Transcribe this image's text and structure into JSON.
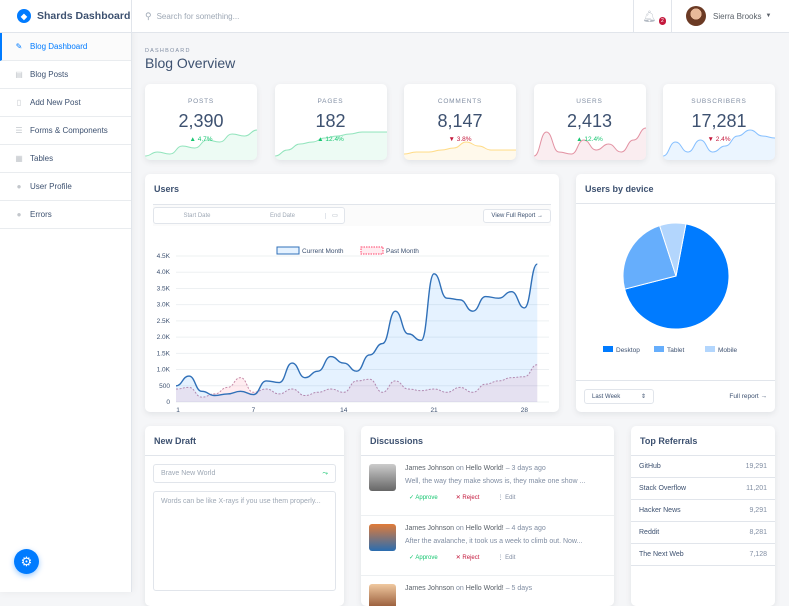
{
  "brand": {
    "name": "Shards Dashboard"
  },
  "sidebar": {
    "items": [
      {
        "label": "Blog Dashboard",
        "icon": "pencil-icon",
        "active": true
      },
      {
        "label": "Blog Posts",
        "icon": "posts-icon"
      },
      {
        "label": "Add New Post",
        "icon": "document-icon"
      },
      {
        "label": "Forms & Components",
        "icon": "forms-icon"
      },
      {
        "label": "Tables",
        "icon": "table-icon"
      },
      {
        "label": "User Profile",
        "icon": "user-icon"
      },
      {
        "label": "Errors",
        "icon": "error-icon"
      }
    ]
  },
  "header": {
    "search_placeholder": "Search for something...",
    "notification_count": "2",
    "user_name": "Sierra Brooks"
  },
  "page": {
    "subtitle": "DASHBOARD",
    "title": "Blog Overview"
  },
  "stats": [
    {
      "label": "POSTS",
      "value": "2,390",
      "change": "4.7%",
      "direction": "up",
      "color": "#17c671"
    },
    {
      "label": "PAGES",
      "value": "182",
      "change": "12.4%",
      "direction": "up",
      "color": "#17c671"
    },
    {
      "label": "COMMENTS",
      "value": "8,147",
      "change": "3.8%",
      "direction": "down",
      "color": "#ffb400"
    },
    {
      "label": "USERS",
      "value": "2,413",
      "change": "12.4%",
      "direction": "up",
      "color": "#c4183c"
    },
    {
      "label": "SUBSCRIBERS",
      "value": "17,281",
      "change": "2.4%",
      "direction": "down",
      "color": "#007bff"
    }
  ],
  "users_card": {
    "title": "Users",
    "start_placeholder": "Start Date",
    "end_placeholder": "End Date",
    "report_button": "View Full Report →"
  },
  "chart_data": [
    {
      "type": "line",
      "title": "",
      "ylim": [
        0,
        4500
      ],
      "yticks": [
        "0",
        "500",
        "1.0K",
        "1.5K",
        "2.0K",
        "2.5K",
        "3.0K",
        "3.5K",
        "4.0K",
        "4.5K"
      ],
      "xticks": [
        "1",
        "7",
        "14",
        "21",
        "28"
      ],
      "x": [
        1,
        2,
        3,
        4,
        5,
        6,
        7,
        8,
        9,
        10,
        11,
        12,
        13,
        14,
        15,
        16,
        17,
        18,
        19,
        20,
        21,
        22,
        23,
        24,
        25,
        26,
        27,
        28,
        29
      ],
      "series": [
        {
          "name": "Current Month",
          "color": "#007bff",
          "values": [
            500,
            800,
            330,
            200,
            250,
            330,
            230,
            650,
            600,
            1200,
            750,
            950,
            1400,
            1200,
            950,
            1450,
            1800,
            2800,
            2100,
            1900,
            3950,
            3200,
            3150,
            2800,
            3250,
            3200,
            3400,
            2900,
            4250
          ]
        },
        {
          "name": "Past Month",
          "color": "#ff4169",
          "values": [
            400,
            450,
            150,
            250,
            450,
            750,
            300,
            400,
            250,
            400,
            200,
            300,
            400,
            300,
            650,
            700,
            300,
            650,
            400,
            350,
            400,
            300,
            450,
            300,
            550,
            650,
            750,
            780,
            1150
          ]
        }
      ],
      "legend": "top"
    },
    {
      "type": "pie",
      "title": "Users by device",
      "categories": [
        "Desktop",
        "Tablet",
        "Mobile"
      ],
      "values": [
        68,
        24,
        8
      ],
      "colors": [
        "#007bff",
        "#66aefc",
        "#b3d6fd"
      ],
      "legend": "bottom"
    }
  ],
  "device_card": {
    "title": "Users by device",
    "range": "Last Week",
    "report_link": "Full report →"
  },
  "draft": {
    "title": "New Draft",
    "title_placeholder": "Brave New World",
    "body_placeholder": "Words can be like X-rays if you use them properly..."
  },
  "discussions": {
    "title": "Discussions",
    "items": [
      {
        "author": "James Johnson",
        "on": "on",
        "post": "Hello World!",
        "time": "– 3 days ago",
        "text": "Well, the way they make shows is, they make one show ..."
      },
      {
        "author": "James Johnson",
        "on": "on",
        "post": "Hello World!",
        "time": "– 4 days ago",
        "text": "After the avalanche, it took us a week to climb out. Now..."
      },
      {
        "author": "James Johnson",
        "on": "on",
        "post": "Hello World!",
        "time": "– 5 days",
        "text": ""
      }
    ],
    "approve": "✓ Approve",
    "reject": "✕ Reject",
    "edit": "⋮ Edit"
  },
  "referrals": {
    "title": "Top Referrals",
    "items": [
      {
        "name": "GitHub",
        "value": "19,291"
      },
      {
        "name": "Stack Overflow",
        "value": "11,201"
      },
      {
        "name": "Hacker News",
        "value": "9,291"
      },
      {
        "name": "Reddit",
        "value": "8,281"
      },
      {
        "name": "The Next Web",
        "value": "7,128"
      }
    ]
  }
}
